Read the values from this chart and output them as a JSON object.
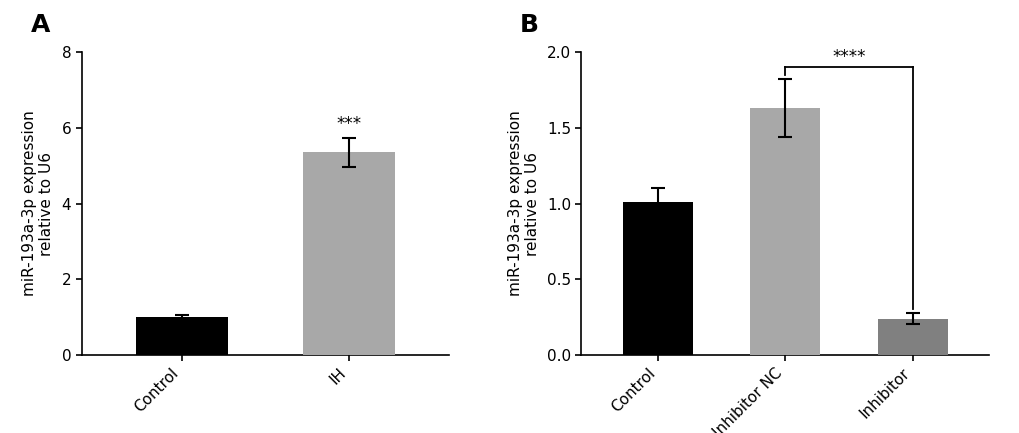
{
  "panel_A": {
    "categories": [
      "Control",
      "IH"
    ],
    "values": [
      1.0,
      5.35
    ],
    "errors": [
      0.05,
      0.38
    ],
    "bar_colors": [
      "#000000",
      "#a8a8a8"
    ],
    "ylabel": "miR-193a-3p expression\nrelative to U6",
    "ylim": [
      0,
      8
    ],
    "yticks": [
      0,
      2,
      4,
      6,
      8
    ],
    "sig_label": "***",
    "panel_label": "A"
  },
  "panel_B": {
    "categories": [
      "Control",
      "Inhibitor NC",
      "Inhibitor"
    ],
    "values": [
      1.01,
      1.63,
      0.24
    ],
    "errors": [
      0.09,
      0.19,
      0.035
    ],
    "bar_colors": [
      "#000000",
      "#a8a8a8",
      "#808080"
    ],
    "ylabel": "miR-193a-3p expression\nrelative to U6",
    "ylim": [
      0,
      2.0
    ],
    "yticks": [
      0.0,
      0.5,
      1.0,
      1.5,
      2.0
    ],
    "sig_label": "****",
    "panel_label": "B"
  },
  "background_color": "#ffffff",
  "bar_width": 0.55,
  "tick_fontsize": 11,
  "label_fontsize": 11,
  "panel_label_fontsize": 18
}
